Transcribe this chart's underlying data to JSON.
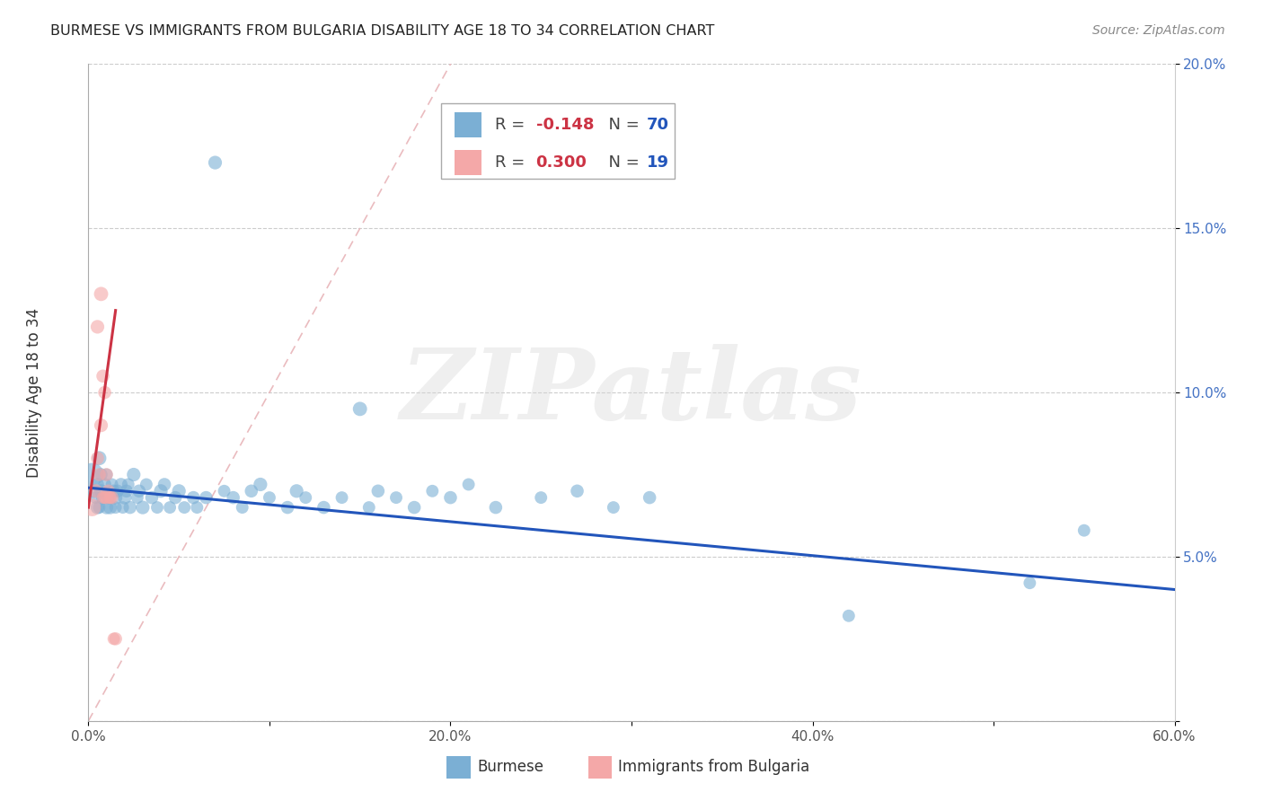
{
  "title": "BURMESE VS IMMIGRANTS FROM BULGARIA DISABILITY AGE 18 TO 34 CORRELATION CHART",
  "source": "Source: ZipAtlas.com",
  "ylabel": "Disability Age 18 to 34",
  "xlim": [
    0.0,
    0.6
  ],
  "ylim": [
    0.0,
    0.2
  ],
  "xtick_vals": [
    0.0,
    0.1,
    0.2,
    0.3,
    0.4,
    0.5,
    0.6
  ],
  "xtick_labels": [
    "0.0%",
    "",
    "20.0%",
    "",
    "40.0%",
    "",
    "60.0%"
  ],
  "ytick_vals": [
    0.0,
    0.05,
    0.1,
    0.15,
    0.2
  ],
  "ytick_labels_right": [
    "",
    "5.0%",
    "10.0%",
    "15.0%",
    "20.0%"
  ],
  "burmese_color": "#7bafd4",
  "bulgaria_color": "#f4a8a8",
  "blue_line_color": "#2255bb",
  "pink_line_color": "#cc3344",
  "diag_color": "#e8b4b8",
  "R_burmese": -0.148,
  "N_burmese": 70,
  "R_bulgaria": 0.3,
  "N_bulgaria": 19,
  "watermark": "ZIPatlas",
  "watermark_color": "#d8d8d8",
  "bur_x": [
    0.002,
    0.003,
    0.004,
    0.005,
    0.005,
    0.006,
    0.006,
    0.007,
    0.007,
    0.008,
    0.009,
    0.01,
    0.01,
    0.011,
    0.012,
    0.013,
    0.014,
    0.015,
    0.015,
    0.016,
    0.018,
    0.019,
    0.02,
    0.021,
    0.022,
    0.023,
    0.025,
    0.027,
    0.028,
    0.03,
    0.032,
    0.035,
    0.038,
    0.04,
    0.042,
    0.045,
    0.048,
    0.05,
    0.053,
    0.058,
    0.06,
    0.065,
    0.07,
    0.075,
    0.08,
    0.085,
    0.09,
    0.095,
    0.1,
    0.11,
    0.115,
    0.12,
    0.13,
    0.14,
    0.15,
    0.155,
    0.16,
    0.17,
    0.18,
    0.19,
    0.2,
    0.21,
    0.225,
    0.25,
    0.27,
    0.29,
    0.31,
    0.42,
    0.52,
    0.55
  ],
  "bur_y": [
    0.075,
    0.07,
    0.068,
    0.065,
    0.072,
    0.08,
    0.065,
    0.07,
    0.075,
    0.068,
    0.072,
    0.065,
    0.075,
    0.068,
    0.065,
    0.072,
    0.07,
    0.068,
    0.065,
    0.07,
    0.072,
    0.065,
    0.068,
    0.07,
    0.072,
    0.065,
    0.075,
    0.068,
    0.07,
    0.065,
    0.072,
    0.068,
    0.065,
    0.07,
    0.072,
    0.065,
    0.068,
    0.07,
    0.065,
    0.068,
    0.065,
    0.068,
    0.17,
    0.07,
    0.068,
    0.065,
    0.07,
    0.072,
    0.068,
    0.065,
    0.07,
    0.068,
    0.065,
    0.068,
    0.095,
    0.065,
    0.07,
    0.068,
    0.065,
    0.07,
    0.068,
    0.072,
    0.065,
    0.068,
    0.07,
    0.065,
    0.068,
    0.032,
    0.042,
    0.058
  ],
  "bur_sz": [
    350,
    120,
    100,
    120,
    110,
    130,
    100,
    120,
    110,
    120,
    110,
    120,
    100,
    110,
    120,
    100,
    110,
    120,
    100,
    110,
    110,
    100,
    120,
    110,
    100,
    110,
    120,
    100,
    110,
    120,
    100,
    110,
    100,
    120,
    110,
    100,
    110,
    120,
    100,
    110,
    100,
    110,
    120,
    100,
    110,
    100,
    110,
    120,
    100,
    110,
    120,
    100,
    110,
    100,
    130,
    100,
    110,
    100,
    110,
    100,
    110,
    100,
    110,
    100,
    110,
    100,
    110,
    100,
    100,
    100
  ],
  "bul_x": [
    0.002,
    0.004,
    0.005,
    0.007,
    0.008,
    0.009,
    0.01,
    0.011,
    0.012,
    0.013,
    0.005,
    0.007,
    0.009,
    0.012,
    0.015,
    0.006,
    0.008,
    0.01,
    0.014
  ],
  "bul_y": [
    0.065,
    0.07,
    0.08,
    0.09,
    0.105,
    0.068,
    0.075,
    0.07,
    0.068,
    0.068,
    0.12,
    0.13,
    0.1,
    0.068,
    0.025,
    0.075,
    0.068,
    0.068,
    0.025
  ],
  "bul_sz": [
    200,
    120,
    110,
    120,
    110,
    100,
    110,
    110,
    100,
    110,
    120,
    130,
    110,
    100,
    110,
    110,
    100,
    110,
    100
  ]
}
